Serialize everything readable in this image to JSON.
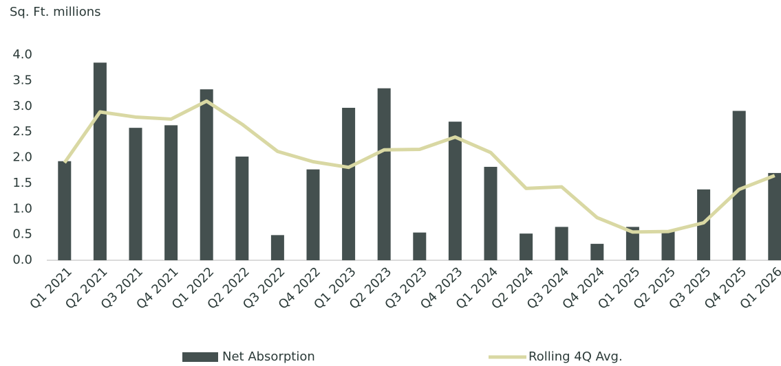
{
  "chart_data": {
    "type": "bar_line",
    "y_axis_label": "Sq. Ft. millions",
    "categories": [
      "Q1 2021",
      "Q2 2021",
      "Q3 2021",
      "Q4 2021",
      "Q1 2022",
      "Q2 2022",
      "Q3 2022",
      "Q4 2022",
      "Q1 2023",
      "Q2 2023",
      "Q3 2023",
      "Q4 2023",
      "Q1 2024",
      "Q2 2024",
      "Q3 2024",
      "Q4 2024",
      "Q1 2025",
      "Q2 2025",
      "Q3 2025",
      "Q4 2025",
      "Q1 2026"
    ],
    "series": [
      {
        "name": "Net Absorption",
        "type": "bar",
        "color": "#44504f",
        "values": [
          1.93,
          3.85,
          2.58,
          2.63,
          3.33,
          2.02,
          0.49,
          1.77,
          2.97,
          3.35,
          0.54,
          2.7,
          1.82,
          0.52,
          0.65,
          0.32,
          0.65,
          0.58,
          1.38,
          2.91,
          1.7
        ]
      },
      {
        "name": "Rolling 4Q Avg.",
        "type": "line",
        "color": "#d9d8a3",
        "values": [
          1.9,
          2.89,
          2.79,
          2.75,
          3.1,
          2.65,
          2.12,
          1.92,
          1.81,
          2.15,
          2.16,
          2.4,
          2.1,
          1.4,
          1.43,
          0.83,
          0.55,
          0.56,
          0.73,
          1.38,
          1.65
        ]
      }
    ],
    "ylim": [
      0,
      4
    ],
    "yticks": [
      {
        "value": 0,
        "label": "0.0"
      },
      0.5,
      {
        "value": 1,
        "label": "1.0"
      },
      1.5,
      {
        "value": 2,
        "label": "2.0"
      },
      2.5,
      {
        "value": 3,
        "label": "3.0"
      },
      3.5,
      {
        "value": 4,
        "label": "4.0"
      }
    ],
    "grid": false,
    "legend": "bottom"
  }
}
